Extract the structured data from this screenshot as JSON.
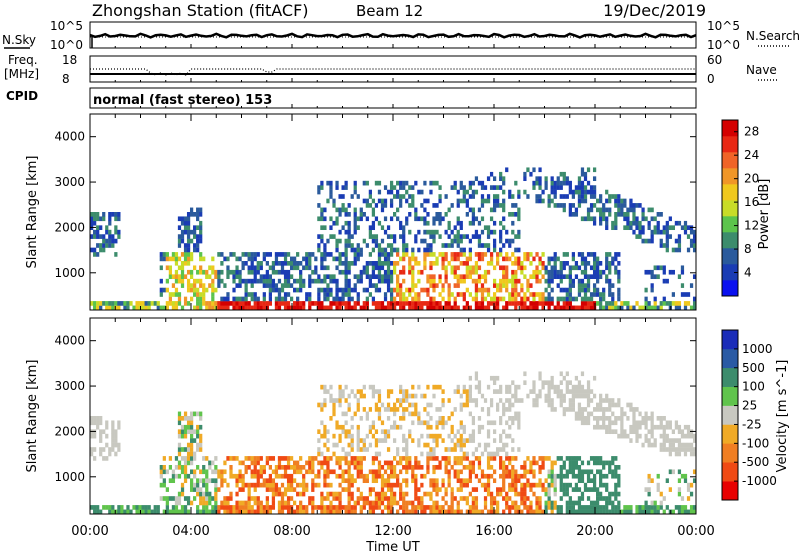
{
  "header": {
    "station": "Zhongshan Station (fitACF)",
    "beam": "Beam 12",
    "date": "19/Dec/2019"
  },
  "noise_panel": {
    "left_label": "N.Sky",
    "right_label": "N.Search",
    "left_ticks": [
      "10^5",
      "10^0"
    ],
    "right_ticks": [
      "10^5",
      "10^0"
    ]
  },
  "freq_panel": {
    "left_label_1": "Freq.",
    "left_label_2": "[MHz]",
    "right_label": "Nave",
    "left_ticks": [
      "18",
      "8"
    ],
    "right_ticks": [
      "60",
      "0"
    ]
  },
  "cpid_panel": {
    "label": "CPID",
    "mode_text": "normal (fast stereo) 153"
  },
  "colors": {
    "power_scale": [
      "#0a10f0",
      "#1a3cb4",
      "#2a5a9c",
      "#3c8c6c",
      "#5cc44c",
      "#c8dc28",
      "#f0c81e",
      "#f09628",
      "#f06428",
      "#e82814",
      "#d40000"
    ],
    "velocity_scale": [
      "#e80000",
      "#f04a14",
      "#f07e22",
      "#f0aa26",
      "#c8c8c0",
      "#60c44c",
      "#3c8c6c",
      "#2a5aa4",
      "#1a2cb8"
    ]
  },
  "chart_data": [
    {
      "type": "heatmap",
      "name": "Power",
      "xlabel": "Time UT",
      "ylabel": "Slant Range [km]",
      "x_ticks": [
        "00:00",
        "04:00",
        "08:00",
        "12:00",
        "16:00",
        "20:00",
        "00:00"
      ],
      "xlim_hours": [
        0,
        24
      ],
      "ylim": [
        180,
        4500
      ],
      "y_ticks": [
        1000,
        2000,
        3000,
        4000
      ],
      "colorbar": {
        "label": "Power [dB]",
        "ticks": [
          4,
          8,
          12,
          16,
          20,
          24,
          28
        ],
        "range": [
          0,
          30
        ]
      }
    },
    {
      "type": "heatmap",
      "name": "Velocity",
      "xlabel": "Time UT",
      "ylabel": "Slant Range [km]",
      "x_ticks": [
        "00:00",
        "04:00",
        "08:00",
        "12:00",
        "16:00",
        "20:00",
        "00:00"
      ],
      "xlim_hours": [
        0,
        24
      ],
      "ylim": [
        180,
        4500
      ],
      "y_ticks": [
        1000,
        2000,
        3000,
        4000
      ],
      "colorbar": {
        "label": "Velocity [m s^-1]",
        "ticks": [
          "1000",
          "500",
          "100",
          "25",
          "-25",
          "-100",
          "-500",
          "-1000"
        ]
      }
    }
  ]
}
